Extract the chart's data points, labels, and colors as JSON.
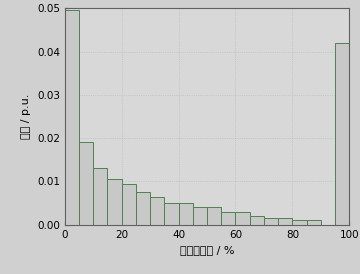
{
  "bar_heights": [
    0.0495,
    0.019,
    0.013,
    0.0105,
    0.0095,
    0.0075,
    0.0065,
    0.005,
    0.005,
    0.004,
    0.004,
    0.003,
    0.003,
    0.002,
    0.0015,
    0.0015,
    0.001,
    0.001,
    0.042
  ],
  "bar_left_edges": [
    0,
    5,
    10,
    15,
    20,
    25,
    30,
    35,
    40,
    45,
    50,
    55,
    60,
    65,
    70,
    75,
    80,
    85,
    95
  ],
  "bar_widths": [
    5,
    5,
    5,
    5,
    5,
    5,
    5,
    5,
    5,
    5,
    5,
    5,
    5,
    5,
    5,
    5,
    5,
    5,
    5
  ],
  "bar_facecolor": "#c8c8c8",
  "bar_edgecolor": "#508050",
  "xlabel": "风电场出力 / %",
  "ylabel": "概率 / p.u.",
  "xlim": [
    0,
    100
  ],
  "ylim": [
    0,
    0.05
  ],
  "xticks": [
    0,
    20,
    40,
    60,
    80,
    100
  ],
  "yticks": [
    0,
    0.01,
    0.02,
    0.03,
    0.04,
    0.05
  ],
  "grid_color": "#b0b8b0",
  "bg_color": "#d8d8d8",
  "fig_bg_color": "#d0d0d0",
  "spine_color": "#606060",
  "label_fontsize": 8,
  "tick_fontsize": 7.5
}
